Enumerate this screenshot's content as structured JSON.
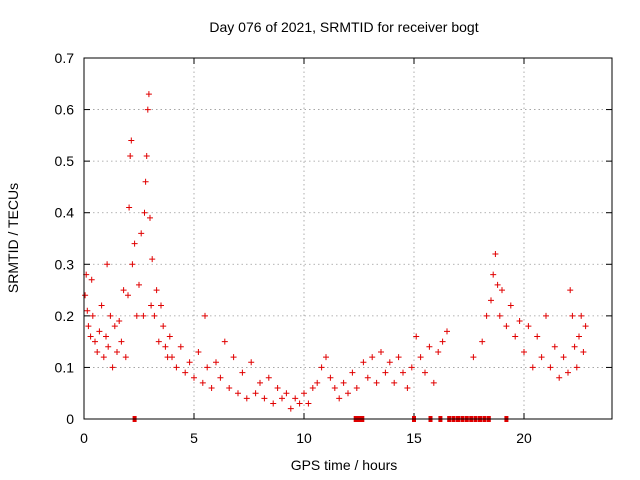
{
  "chart_data": {
    "type": "scatter",
    "title": "Day 076 of 2021, SRMTID for receiver bogt",
    "xlabel": "GPS time / hours",
    "ylabel": "SRMTID / TECUs",
    "xlim": [
      0,
      24
    ],
    "ylim": [
      0,
      0.7
    ],
    "x_ticks": [
      0,
      5,
      10,
      15,
      20
    ],
    "x_tick_labels": [
      "0",
      "5",
      "10",
      "15",
      "20"
    ],
    "y_ticks": [
      0,
      0.1,
      0.2,
      0.3,
      0.4,
      0.5,
      0.6,
      0.7
    ],
    "y_tick_labels": [
      "0",
      "0.1",
      "0.2",
      "0.3",
      "0.4",
      "0.5",
      "0.6",
      "0.7"
    ],
    "grid": true,
    "marker": "+",
    "color": "#e00000",
    "series": [
      {
        "name": "SRMTID",
        "points": [
          [
            0.05,
            0.24
          ],
          [
            0.1,
            0.28
          ],
          [
            0.15,
            0.21
          ],
          [
            0.2,
            0.18
          ],
          [
            0.3,
            0.16
          ],
          [
            0.35,
            0.27
          ],
          [
            0.4,
            0.2
          ],
          [
            0.5,
            0.15
          ],
          [
            0.6,
            0.13
          ],
          [
            0.7,
            0.17
          ],
          [
            0.8,
            0.22
          ],
          [
            0.9,
            0.12
          ],
          [
            1.0,
            0.16
          ],
          [
            1.05,
            0.3
          ],
          [
            1.1,
            0.14
          ],
          [
            1.2,
            0.2
          ],
          [
            1.3,
            0.1
          ],
          [
            1.4,
            0.18
          ],
          [
            1.5,
            0.13
          ],
          [
            1.6,
            0.19
          ],
          [
            1.7,
            0.15
          ],
          [
            1.8,
            0.25
          ],
          [
            1.9,
            0.12
          ],
          [
            2.0,
            0.24
          ],
          [
            2.05,
            0.41
          ],
          [
            2.1,
            0.51
          ],
          [
            2.15,
            0.54
          ],
          [
            2.2,
            0.3
          ],
          [
            2.3,
            0.34
          ],
          [
            2.4,
            0.2
          ],
          [
            2.5,
            0.26
          ],
          [
            2.6,
            0.36
          ],
          [
            2.7,
            0.2
          ],
          [
            2.75,
            0.4
          ],
          [
            2.8,
            0.46
          ],
          [
            2.85,
            0.51
          ],
          [
            2.9,
            0.6
          ],
          [
            2.95,
            0.63
          ],
          [
            3.0,
            0.39
          ],
          [
            3.05,
            0.22
          ],
          [
            3.1,
            0.31
          ],
          [
            3.2,
            0.2
          ],
          [
            3.3,
            0.25
          ],
          [
            3.4,
            0.15
          ],
          [
            3.5,
            0.22
          ],
          [
            3.6,
            0.18
          ],
          [
            3.7,
            0.14
          ],
          [
            3.8,
            0.12
          ],
          [
            3.9,
            0.16
          ],
          [
            4.0,
            0.12
          ],
          [
            4.2,
            0.1
          ],
          [
            4.4,
            0.14
          ],
          [
            4.6,
            0.09
          ],
          [
            4.8,
            0.11
          ],
          [
            5.0,
            0.08
          ],
          [
            5.2,
            0.13
          ],
          [
            5.4,
            0.07
          ],
          [
            5.5,
            0.2
          ],
          [
            5.6,
            0.1
          ],
          [
            5.8,
            0.06
          ],
          [
            6.0,
            0.11
          ],
          [
            6.2,
            0.08
          ],
          [
            6.4,
            0.15
          ],
          [
            6.6,
            0.06
          ],
          [
            6.8,
            0.12
          ],
          [
            7.0,
            0.05
          ],
          [
            7.2,
            0.09
          ],
          [
            7.4,
            0.04
          ],
          [
            7.6,
            0.11
          ],
          [
            7.8,
            0.05
          ],
          [
            8.0,
            0.07
          ],
          [
            8.2,
            0.04
          ],
          [
            8.4,
            0.08
          ],
          [
            8.6,
            0.03
          ],
          [
            8.8,
            0.06
          ],
          [
            9.0,
            0.04
          ],
          [
            9.2,
            0.05
          ],
          [
            9.4,
            0.02
          ],
          [
            9.6,
            0.04
          ],
          [
            9.8,
            0.03
          ],
          [
            10.0,
            0.05
          ],
          [
            10.2,
            0.03
          ],
          [
            10.4,
            0.06
          ],
          [
            10.6,
            0.07
          ],
          [
            10.8,
            0.1
          ],
          [
            11.0,
            0.12
          ],
          [
            11.2,
            0.08
          ],
          [
            11.4,
            0.06
          ],
          [
            11.6,
            0.04
          ],
          [
            11.8,
            0.07
          ],
          [
            12.0,
            0.05
          ],
          [
            12.2,
            0.09
          ],
          [
            12.4,
            0.06
          ],
          [
            12.7,
            0.11
          ],
          [
            12.9,
            0.08
          ],
          [
            13.1,
            0.12
          ],
          [
            13.3,
            0.07
          ],
          [
            13.5,
            0.13
          ],
          [
            13.7,
            0.09
          ],
          [
            13.9,
            0.11
          ],
          [
            14.1,
            0.07
          ],
          [
            14.3,
            0.12
          ],
          [
            14.5,
            0.09
          ],
          [
            14.7,
            0.06
          ],
          [
            14.9,
            0.1
          ],
          [
            15.1,
            0.16
          ],
          [
            15.3,
            0.12
          ],
          [
            15.5,
            0.09
          ],
          [
            15.7,
            0.14
          ],
          [
            15.9,
            0.07
          ],
          [
            16.1,
            0.13
          ],
          [
            16.3,
            0.15
          ],
          [
            16.5,
            0.17
          ],
          [
            17.7,
            0.12
          ],
          [
            18.1,
            0.15
          ],
          [
            18.3,
            0.2
          ],
          [
            18.5,
            0.23
          ],
          [
            18.6,
            0.28
          ],
          [
            18.7,
            0.32
          ],
          [
            18.8,
            0.26
          ],
          [
            18.9,
            0.2
          ],
          [
            19.0,
            0.25
          ],
          [
            19.2,
            0.18
          ],
          [
            19.4,
            0.22
          ],
          [
            19.6,
            0.16
          ],
          [
            19.8,
            0.19
          ],
          [
            20.0,
            0.13
          ],
          [
            20.2,
            0.18
          ],
          [
            20.4,
            0.1
          ],
          [
            20.6,
            0.16
          ],
          [
            20.8,
            0.12
          ],
          [
            21.0,
            0.2
          ],
          [
            21.2,
            0.1
          ],
          [
            21.4,
            0.14
          ],
          [
            21.6,
            0.08
          ],
          [
            21.8,
            0.12
          ],
          [
            22.0,
            0.09
          ],
          [
            22.1,
            0.25
          ],
          [
            22.2,
            0.2
          ],
          [
            22.3,
            0.14
          ],
          [
            22.4,
            0.1
          ],
          [
            22.5,
            0.16
          ],
          [
            22.6,
            0.2
          ],
          [
            22.7,
            0.13
          ],
          [
            22.8,
            0.18
          ]
        ]
      }
    ],
    "missing_data_markers_hours": [
      2.3,
      12.35,
      12.5,
      12.65,
      15.0,
      15.75,
      16.2,
      16.6,
      16.8,
      17.0,
      17.2,
      17.4,
      17.6,
      17.8,
      18.0,
      18.2,
      18.4,
      19.2
    ]
  }
}
